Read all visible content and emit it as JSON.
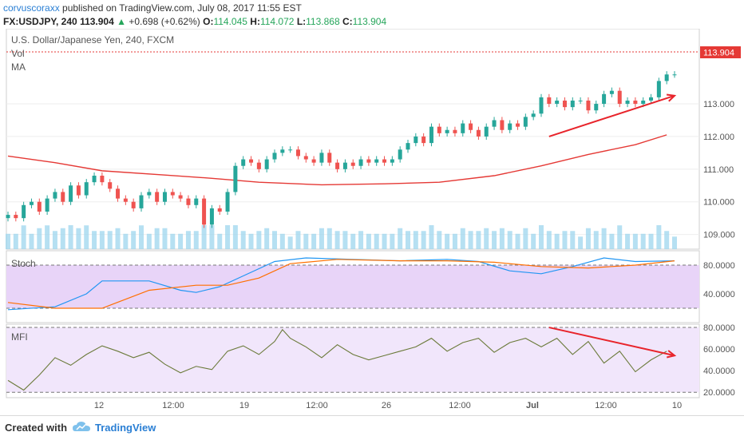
{
  "header": {
    "author": "corvuscoraxx",
    "published_text": "published on TradingView.com, July 08, 2017 11:55 EST",
    "symbol": "FX:USDJPY, 240",
    "last": "113.904",
    "change_arrow": "▲",
    "change": "+0.698 (+0.62%)",
    "o_label": "O:",
    "o_value": "114.045",
    "h_label": "H:",
    "h_value": "114.072",
    "l_label": "L:",
    "l_value": "113.868",
    "c_label": "C:",
    "c_value": "113.904"
  },
  "main_pane": {
    "title": "U.S. Dollar/Japanese Yen, 240, FXCM",
    "vol_label": "Vol",
    "ma_label": "MA",
    "price_tag": "113.904"
  },
  "stoch_pane": {
    "label": "Stoch"
  },
  "mfi_pane": {
    "label": "MFI"
  },
  "footer": {
    "created_with": "Created with",
    "brand": "TradingView"
  },
  "colors": {
    "up": "#26a69a",
    "down": "#ef5350",
    "ma": "#e53935",
    "stoch_k": "#2196f3",
    "stoch_d": "#ff6f00",
    "stoch_bg": "#e8d4f8",
    "mfi_line": "#6b7a3a",
    "mfi_bg": "#f1e6fb",
    "annotation": "#e8242b",
    "volume": "#9ed6ee"
  },
  "chart_data": [
    {
      "type": "candlestick",
      "title": "U.S. Dollar/Japanese Yen, 240, FXCM",
      "y_ticks": [
        "109.000",
        "110.000",
        "111.000",
        "112.000",
        "113.000"
      ],
      "ylim": [
        108.55,
        115.3
      ],
      "x_tick_labels": [
        "12",
        "12:00",
        "19",
        "12:00",
        "26",
        "12:00",
        "Jul",
        "12:00",
        "10"
      ],
      "last_price": "113.904",
      "close": [
        109.6,
        109.5,
        109.9,
        110.0,
        109.7,
        110.1,
        110.3,
        110.0,
        110.5,
        110.2,
        110.6,
        110.8,
        110.6,
        110.4,
        110.1,
        110.0,
        109.8,
        110.2,
        110.3,
        110.0,
        110.3,
        110.2,
        110.1,
        109.9,
        110.1,
        109.3,
        109.8,
        109.7,
        110.3,
        111.1,
        111.3,
        111.2,
        111.0,
        111.3,
        111.5,
        111.6,
        111.6,
        111.4,
        111.3,
        111.2,
        111.5,
        111.2,
        111.0,
        111.2,
        111.1,
        111.3,
        111.2,
        111.3,
        111.2,
        111.3,
        111.6,
        111.8,
        112.0,
        111.8,
        112.3,
        112.1,
        112.2,
        112.1,
        112.4,
        112.2,
        112.0,
        112.3,
        112.5,
        112.2,
        112.4,
        112.3,
        112.6,
        112.7,
        113.2,
        113.0,
        113.1,
        112.9,
        113.1,
        113.1,
        112.8,
        113.0,
        113.3,
        113.4,
        113.0,
        113.1,
        113.0,
        113.1,
        113.2,
        113.7,
        113.9,
        113.9
      ],
      "volume_scale": "relative",
      "ma_series": [
        [
          0,
          111.4
        ],
        [
          6,
          111.2
        ],
        [
          12,
          110.95
        ],
        [
          20,
          110.82
        ],
        [
          26,
          110.72
        ],
        [
          32,
          110.6
        ],
        [
          40,
          110.52
        ],
        [
          48,
          110.55
        ],
        [
          55,
          110.6
        ],
        [
          62,
          110.8
        ],
        [
          68,
          111.1
        ],
        [
          74,
          111.45
        ],
        [
          80,
          111.75
        ],
        [
          84,
          112.05
        ]
      ],
      "annotations": [
        {
          "type": "arrow",
          "direction": "up",
          "from_index": 69,
          "to_index": 85
        }
      ]
    },
    {
      "type": "line",
      "title": "Stoch",
      "y_ticks": [
        "40.0000",
        "80.0000"
      ],
      "ylim": [
        0,
        100
      ],
      "levels": [
        20,
        80
      ],
      "series": [
        {
          "color": "#2196f3",
          "points": [
            [
              0,
              18
            ],
            [
              6,
              22
            ],
            [
              10,
              40
            ],
            [
              12,
              58
            ],
            [
              18,
              58
            ],
            [
              22,
              45
            ],
            [
              24,
              42
            ],
            [
              27,
              50
            ],
            [
              30,
              65
            ],
            [
              34,
              85
            ],
            [
              38,
              90
            ],
            [
              44,
              88
            ],
            [
              50,
              86
            ],
            [
              56,
              88
            ],
            [
              60,
              85
            ],
            [
              64,
              72
            ],
            [
              68,
              68
            ],
            [
              72,
              78
            ],
            [
              76,
              90
            ],
            [
              80,
              85
            ],
            [
              85,
              86
            ]
          ]
        },
        {
          "color": "#ff6f00",
          "points": [
            [
              0,
              28
            ],
            [
              6,
              20
            ],
            [
              12,
              20
            ],
            [
              18,
              45
            ],
            [
              24,
              52
            ],
            [
              28,
              52
            ],
            [
              32,
              62
            ],
            [
              36,
              82
            ],
            [
              42,
              88
            ],
            [
              50,
              86
            ],
            [
              56,
              86
            ],
            [
              62,
              84
            ],
            [
              68,
              78
            ],
            [
              74,
              76
            ],
            [
              80,
              80
            ],
            [
              85,
              86
            ]
          ]
        }
      ]
    },
    {
      "type": "line",
      "title": "MFI",
      "y_ticks": [
        "20.0000",
        "40.0000",
        "60.0000",
        "80.0000"
      ],
      "ylim": [
        15,
        83
      ],
      "levels": [
        20,
        80
      ],
      "series": [
        {
          "color": "#6b7a3a",
          "points": [
            [
              0,
              31
            ],
            [
              2,
              22
            ],
            [
              4,
              36
            ],
            [
              6,
              52
            ],
            [
              8,
              45
            ],
            [
              10,
              55
            ],
            [
              12,
              63
            ],
            [
              14,
              58
            ],
            [
              16,
              52
            ],
            [
              18,
              57
            ],
            [
              20,
              46
            ],
            [
              22,
              38
            ],
            [
              24,
              44
            ],
            [
              26,
              41
            ],
            [
              28,
              58
            ],
            [
              30,
              63
            ],
            [
              32,
              55
            ],
            [
              34,
              67
            ],
            [
              35,
              78
            ],
            [
              36,
              70
            ],
            [
              38,
              62
            ],
            [
              40,
              52
            ],
            [
              42,
              64
            ],
            [
              44,
              55
            ],
            [
              46,
              50
            ],
            [
              48,
              54
            ],
            [
              50,
              58
            ],
            [
              52,
              62
            ],
            [
              54,
              70
            ],
            [
              56,
              58
            ],
            [
              58,
              66
            ],
            [
              60,
              70
            ],
            [
              62,
              57
            ],
            [
              64,
              66
            ],
            [
              66,
              70
            ],
            [
              68,
              62
            ],
            [
              70,
              70
            ],
            [
              72,
              55
            ],
            [
              74,
              67
            ],
            [
              76,
              47
            ],
            [
              78,
              58
            ],
            [
              80,
              39
            ],
            [
              82,
              50
            ],
            [
              84,
              58
            ]
          ]
        }
      ],
      "annotations": [
        {
          "type": "arrow",
          "direction": "down",
          "from_index": 69,
          "to_index": 85
        }
      ]
    }
  ]
}
